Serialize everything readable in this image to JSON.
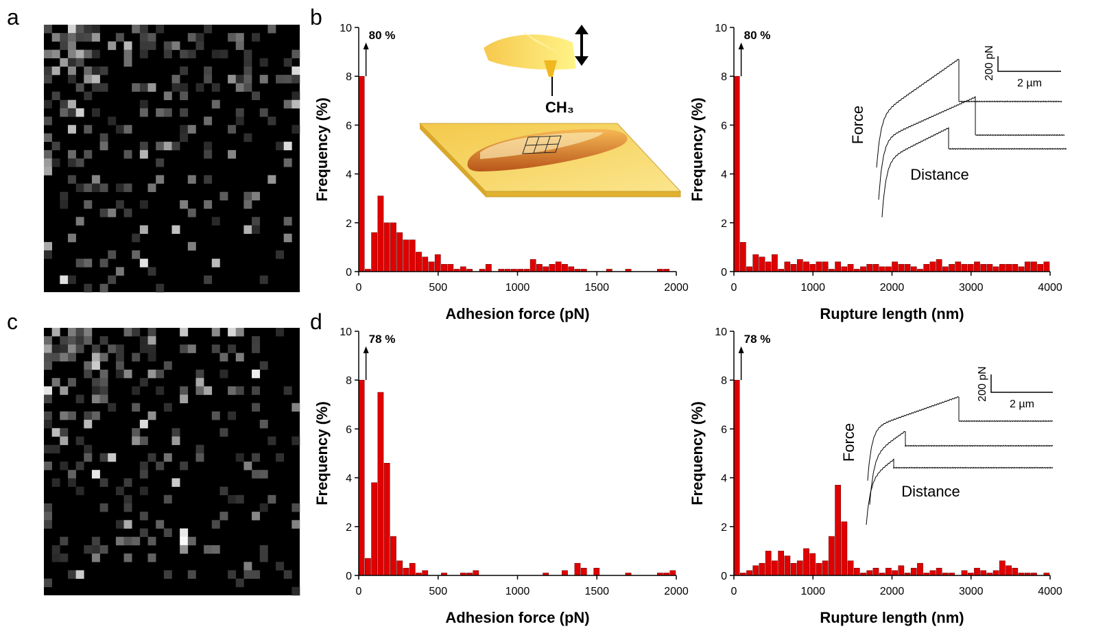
{
  "panel_labels": [
    "a",
    "b",
    "c",
    "d"
  ],
  "cartoon_label": "CH₃",
  "chart_data": [
    {
      "type": "histogram",
      "xlabel": "Adhesion force (pN)",
      "ylabel": "Frequency (%)",
      "annotation": "80 %",
      "color": "#e00000",
      "bins": [
        0,
        40,
        80,
        120,
        160,
        200,
        240,
        280,
        320,
        360,
        400,
        440,
        480,
        520,
        560,
        600,
        640,
        680,
        720,
        760,
        800,
        840,
        880,
        920,
        960,
        1000,
        1040,
        1080,
        1120,
        1160,
        1200,
        1240,
        1280,
        1320,
        1360,
        1400,
        1440,
        1480,
        1520,
        1560,
        1600,
        1640,
        1680,
        1720,
        1760,
        1800,
        1840,
        1880,
        1920,
        1960,
        2000
      ],
      "values": [
        8,
        0.1,
        1.6,
        3.1,
        2.0,
        2.0,
        1.6,
        1.3,
        1.3,
        0.8,
        0.6,
        0.4,
        0.7,
        0.3,
        0.3,
        0.1,
        0.2,
        0.1,
        0,
        0.1,
        0.3,
        0,
        0.1,
        0.1,
        0.1,
        0.1,
        0.1,
        0.5,
        0.3,
        0.2,
        0.3,
        0.4,
        0.3,
        0.2,
        0.1,
        0.1,
        0,
        0,
        0,
        0.1,
        0,
        0,
        0.1,
        0,
        0,
        0,
        0,
        0.1,
        0.1,
        0
      ],
      "xlim": [
        0,
        2000
      ],
      "xticks": [
        0,
        500,
        1000,
        1500,
        2000
      ],
      "ylim": [
        0,
        10
      ],
      "yticks": [
        0,
        2,
        4,
        6,
        8,
        10
      ]
    },
    {
      "type": "histogram",
      "xlabel": "Rupture length (nm)",
      "ylabel": "Frequency (%)",
      "annotation": "80 %",
      "color": "#e00000",
      "inset": {
        "force_label": "Force",
        "distance_label": "Distance",
        "force_scale": "200 pN",
        "distance_scale": "2 µm"
      },
      "bins": [
        0,
        80,
        160,
        240,
        320,
        400,
        480,
        560,
        640,
        720,
        800,
        880,
        960,
        1040,
        1120,
        1200,
        1280,
        1360,
        1440,
        1520,
        1600,
        1680,
        1760,
        1840,
        1920,
        2000,
        2080,
        2160,
        2240,
        2320,
        2400,
        2480,
        2560,
        2640,
        2720,
        2800,
        2880,
        2960,
        3040,
        3120,
        3200,
        3280,
        3360,
        3440,
        3520,
        3600,
        3680,
        3760,
        3840,
        3920,
        4000
      ],
      "values": [
        8,
        1.2,
        0.2,
        0.7,
        0.6,
        0.4,
        0.7,
        0.1,
        0.4,
        0.3,
        0.5,
        0.4,
        0.3,
        0.4,
        0.4,
        0.1,
        0.4,
        0.2,
        0.3,
        0.1,
        0.2,
        0.3,
        0.3,
        0.2,
        0.2,
        0.4,
        0.3,
        0.3,
        0.2,
        0.1,
        0.3,
        0.4,
        0.5,
        0.2,
        0.3,
        0.4,
        0.3,
        0.3,
        0.4,
        0.3,
        0.3,
        0.2,
        0.3,
        0.3,
        0.3,
        0.2,
        0.4,
        0.4,
        0.3,
        0.4
      ],
      "xlim": [
        0,
        4000
      ],
      "xticks": [
        0,
        1000,
        2000,
        3000,
        4000
      ],
      "ylim": [
        0,
        10
      ],
      "yticks": [
        0,
        2,
        4,
        6,
        8,
        10
      ]
    },
    {
      "type": "histogram",
      "xlabel": "Adhesion force (pN)",
      "ylabel": "Frequency (%)",
      "annotation": "78 %",
      "color": "#e00000",
      "bins": [
        0,
        40,
        80,
        120,
        160,
        200,
        240,
        280,
        320,
        360,
        400,
        440,
        480,
        520,
        560,
        600,
        640,
        680,
        720,
        760,
        800,
        840,
        880,
        920,
        960,
        1000,
        1040,
        1080,
        1120,
        1160,
        1200,
        1240,
        1280,
        1320,
        1360,
        1400,
        1440,
        1480,
        1520,
        1560,
        1600,
        1640,
        1680,
        1720,
        1760,
        1800,
        1840,
        1880,
        1920,
        1960,
        2000
      ],
      "values": [
        8,
        0.7,
        3.8,
        7.5,
        4.6,
        1.6,
        0.6,
        0.3,
        0.5,
        0.1,
        0.2,
        0,
        0,
        0.1,
        0,
        0,
        0.1,
        0.1,
        0.2,
        0,
        0,
        0,
        0,
        0,
        0,
        0,
        0,
        0,
        0,
        0.1,
        0,
        0,
        0.2,
        0,
        0.5,
        0.3,
        0,
        0.3,
        0,
        0,
        0,
        0,
        0.1,
        0,
        0,
        0,
        0,
        0.1,
        0.1,
        0.2
      ],
      "xlim": [
        0,
        2000
      ],
      "xticks": [
        0,
        500,
        1000,
        1500,
        2000
      ],
      "ylim": [
        0,
        10
      ],
      "yticks": [
        0,
        2,
        4,
        6,
        8,
        10
      ]
    },
    {
      "type": "histogram",
      "xlabel": "Rupture length (nm)",
      "ylabel": "Frequency (%)",
      "annotation": "78 %",
      "color": "#e00000",
      "inset": {
        "force_label": "Force",
        "distance_label": "Distance",
        "force_scale": "200 pN",
        "distance_scale": "2 µm"
      },
      "bins": [
        0,
        80,
        160,
        240,
        320,
        400,
        480,
        560,
        640,
        720,
        800,
        880,
        960,
        1040,
        1120,
        1200,
        1280,
        1360,
        1440,
        1520,
        1600,
        1680,
        1760,
        1840,
        1920,
        2000,
        2080,
        2160,
        2240,
        2320,
        2400,
        2480,
        2560,
        2640,
        2720,
        2800,
        2880,
        2960,
        3040,
        3120,
        3200,
        3280,
        3360,
        3440,
        3520,
        3600,
        3680,
        3760,
        3840,
        3920,
        4000
      ],
      "values": [
        8,
        0.1,
        0.2,
        0.4,
        0.5,
        1.0,
        0.6,
        1.0,
        0.8,
        0.5,
        0.6,
        1.1,
        0.9,
        0.5,
        0.6,
        1.6,
        3.7,
        2.2,
        0.6,
        0.3,
        0.1,
        0.2,
        0.3,
        0.1,
        0.3,
        0.2,
        0.4,
        0.1,
        0.3,
        0.5,
        0.1,
        0.2,
        0.3,
        0.1,
        0.1,
        0,
        0.2,
        0.1,
        0.3,
        0.2,
        0.1,
        0.2,
        0.6,
        0.4,
        0.3,
        0.1,
        0.1,
        0.1,
        0,
        0.1
      ],
      "xlim": [
        0,
        4000
      ],
      "xticks": [
        0,
        1000,
        2000,
        3000,
        4000
      ],
      "ylim": [
        0,
        10
      ],
      "yticks": [
        0,
        2,
        4,
        6,
        8,
        10
      ]
    }
  ]
}
